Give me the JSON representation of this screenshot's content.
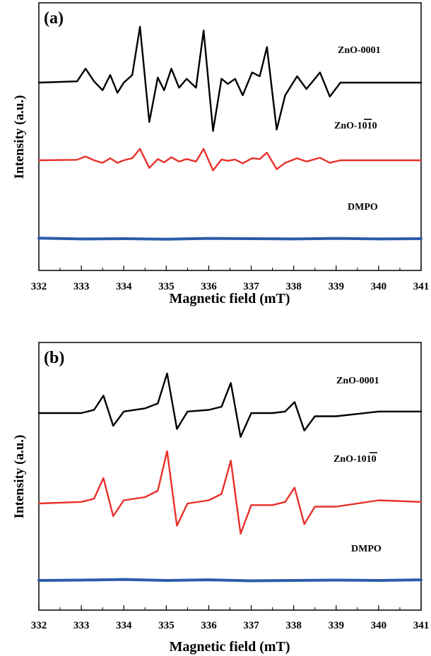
{
  "chart_data": [
    {
      "type": "line",
      "panel_label": "(a)",
      "xlabel": "Magnetic field (mT)",
      "ylabel": "Intensity (a.u.)",
      "xlim": [
        332,
        341
      ],
      "x_ticks": [
        "332",
        "333",
        "334",
        "335",
        "336",
        "337",
        "338",
        "339",
        "340",
        "341"
      ],
      "y_ticks": "none",
      "grid": false,
      "series": [
        {
          "name": "ZnO-0001",
          "color": "#000000",
          "x": [
            332,
            332.9,
            333.1,
            333.3,
            333.5,
            333.68,
            333.85,
            334.0,
            334.2,
            334.38,
            334.6,
            334.8,
            334.95,
            335.12,
            335.3,
            335.48,
            335.7,
            335.88,
            336.1,
            336.3,
            336.45,
            336.62,
            336.8,
            337.02,
            337.2,
            337.37,
            337.6,
            337.8,
            338.08,
            338.3,
            338.62,
            338.85,
            339.1,
            341
          ],
          "values": [
            0,
            0.05,
            0.55,
            0.05,
            -0.3,
            0.3,
            -0.4,
            0.0,
            0.3,
            2.2,
            -1.55,
            0.2,
            -0.3,
            0.55,
            -0.2,
            0.15,
            -0.2,
            2.05,
            -1.9,
            0.15,
            -0.05,
            0.15,
            -0.5,
            0.4,
            0.25,
            1.4,
            -1.85,
            -0.5,
            0.25,
            -0.25,
            0.4,
            -0.55,
            0.0,
            0
          ]
        },
        {
          "name": "ZnO-1010",
          "color": "#e8302a",
          "x": [
            332,
            332.9,
            333.1,
            333.3,
            333.5,
            333.68,
            333.85,
            334.0,
            334.2,
            334.38,
            334.6,
            334.8,
            334.95,
            335.12,
            335.3,
            335.48,
            335.7,
            335.88,
            336.1,
            336.3,
            336.45,
            336.62,
            336.8,
            337.02,
            337.2,
            337.37,
            337.6,
            337.8,
            338.08,
            338.3,
            338.62,
            338.85,
            339.1,
            341
          ],
          "values": [
            0,
            0.02,
            0.15,
            0.0,
            -0.1,
            0.08,
            -0.1,
            0.0,
            0.08,
            0.45,
            -0.3,
            0.05,
            -0.08,
            0.12,
            -0.05,
            0.05,
            -0.05,
            0.45,
            -0.4,
            0.03,
            -0.02,
            0.03,
            -0.12,
            0.08,
            0.05,
            0.3,
            -0.35,
            -0.1,
            0.08,
            -0.05,
            0.1,
            -0.1,
            0.0,
            0
          ]
        },
        {
          "name": "DMPO",
          "color": "#2b5cab",
          "x": [
            332,
            333,
            334,
            335,
            336,
            337,
            338,
            339,
            340,
            341
          ],
          "values": [
            0.02,
            -0.01,
            0.0,
            -0.02,
            0.01,
            0.0,
            -0.01,
            0.01,
            -0.01,
            0.0
          ]
        }
      ]
    },
    {
      "type": "line",
      "panel_label": "(b)",
      "xlabel": "Magnetic field (mT)",
      "ylabel": "Intensity (a.u.)",
      "xlim": [
        332,
        341
      ],
      "x_ticks": [
        "332",
        "333",
        "334",
        "335",
        "336",
        "337",
        "338",
        "339",
        "340",
        "341"
      ],
      "y_ticks": "none",
      "grid": false,
      "series": [
        {
          "name": "ZnO-0001",
          "color": "#000000",
          "x": [
            332,
            333.0,
            333.3,
            333.52,
            333.75,
            334.0,
            334.5,
            334.8,
            335.02,
            335.25,
            335.5,
            336.0,
            336.3,
            336.52,
            336.75,
            337.0,
            337.5,
            337.8,
            338.02,
            338.25,
            338.5,
            339.0,
            340.0,
            341
          ],
          "values": [
            0,
            0.0,
            0.1,
            0.55,
            -0.4,
            0.05,
            0.15,
            0.3,
            1.25,
            -0.5,
            0.05,
            0.1,
            0.2,
            0.95,
            -0.75,
            0.0,
            0.0,
            0.05,
            0.35,
            -0.55,
            -0.1,
            -0.1,
            0.05,
            0.05
          ]
        },
        {
          "name": "ZnO-1010",
          "color": "#e8302a",
          "x": [
            332,
            333.0,
            333.3,
            333.52,
            333.75,
            334.0,
            334.5,
            334.8,
            335.02,
            335.25,
            335.5,
            336.0,
            336.3,
            336.52,
            336.75,
            337.0,
            337.5,
            337.8,
            338.02,
            338.25,
            338.5,
            339.0,
            340.0,
            341
          ],
          "values": [
            0,
            0.05,
            0.15,
            0.8,
            -0.4,
            0.1,
            0.2,
            0.4,
            1.65,
            -0.7,
            0.0,
            0.1,
            0.3,
            1.35,
            -0.95,
            -0.05,
            -0.05,
            0.05,
            0.5,
            -0.65,
            -0.1,
            -0.1,
            0.1,
            0.05
          ]
        },
        {
          "name": "DMPO",
          "color": "#2b5cab",
          "x": [
            332,
            333,
            334,
            335,
            336,
            337,
            338,
            339,
            340,
            341
          ],
          "values": [
            0.0,
            0.01,
            0.03,
            0.0,
            0.02,
            -0.01,
            0.0,
            0.01,
            0.0,
            0.02
          ]
        }
      ]
    }
  ]
}
